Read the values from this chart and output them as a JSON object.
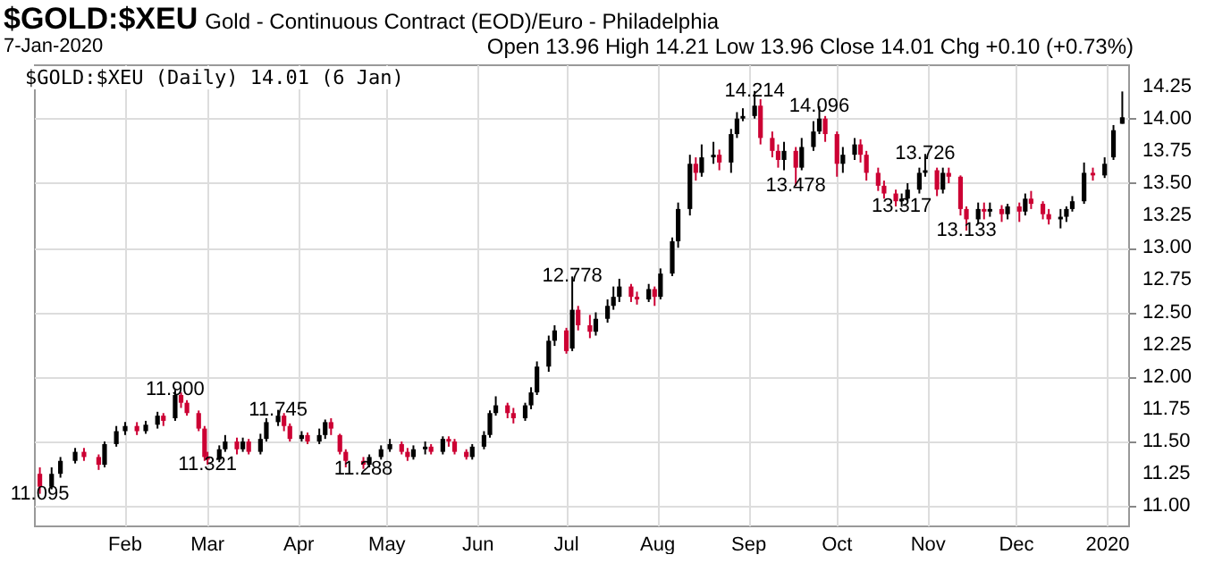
{
  "chart_data": {
    "type": "candlestick",
    "title": "$GOLD:$XEU",
    "subtitle": "Gold - Continuous Contract (EOD)/Euro - Philadelphia",
    "annotations": [
      "7-Jan-2020",
      "Open 13.96  High 14.21  Low 13.96  Close 14.01  Chg +0.10 (+0.73%)",
      "$GOLD:$XEU (Daily) 14.01 (6 Jan)",
      {
        "text": "11.095",
        "x": "2019-01-03",
        "y": 11.095
      },
      {
        "text": "11.900",
        "x": "2019-02-18",
        "y": 11.9
      },
      {
        "text": "11.321",
        "x": "2019-03-01",
        "y": 11.321
      },
      {
        "text": "11.745",
        "x": "2019-03-25",
        "y": 11.745
      },
      {
        "text": "11.288",
        "x": "2019-04-23",
        "y": 11.288
      },
      {
        "text": "12.778",
        "x": "2019-07-03",
        "y": 12.778
      },
      {
        "text": "14.214",
        "x": "2019-09-03",
        "y": 14.214
      },
      {
        "text": "13.478",
        "x": "2019-09-17",
        "y": 13.478
      },
      {
        "text": "14.096",
        "x": "2019-09-25",
        "y": 14.096
      },
      {
        "text": "13.317",
        "x": "2019-10-23",
        "y": 13.317
      },
      {
        "text": "13.726",
        "x": "2019-10-31",
        "y": 13.726
      },
      {
        "text": "13.133",
        "x": "2019-11-14",
        "y": 13.133
      }
    ],
    "xlim": [
      "2019-01-01",
      "2020-01-08"
    ],
    "xticks": [
      {
        "value": "2019-02-01",
        "label": "Feb"
      },
      {
        "value": "2019-03-01",
        "label": "Mar"
      },
      {
        "value": "2019-04-01",
        "label": "Apr"
      },
      {
        "value": "2019-05-01",
        "label": "May"
      },
      {
        "value": "2019-06-01",
        "label": "Jun"
      },
      {
        "value": "2019-07-01",
        "label": "Jul"
      },
      {
        "value": "2019-08-01",
        "label": "Aug"
      },
      {
        "value": "2019-09-01",
        "label": "Sep"
      },
      {
        "value": "2019-10-01",
        "label": "Oct"
      },
      {
        "value": "2019-11-01",
        "label": "Nov"
      },
      {
        "value": "2019-12-01",
        "label": "Dec"
      },
      {
        "value": "2020-01-01",
        "label": "2020"
      }
    ],
    "ylim": [
      10.85,
      14.42
    ],
    "yticks": [
      {
        "value": 11,
        "label": "11.00"
      },
      {
        "value": 11.25,
        "label": "11.25"
      },
      {
        "value": 11.5,
        "label": "11.50"
      },
      {
        "value": 11.75,
        "label": "11.75"
      },
      {
        "value": 12,
        "label": "12.00"
      },
      {
        "value": 12.25,
        "label": "12.25"
      },
      {
        "value": 12.5,
        "label": "12.50"
      },
      {
        "value": 12.75,
        "label": "12.75"
      },
      {
        "value": 13,
        "label": "13.00"
      },
      {
        "value": 13.25,
        "label": "13.25"
      },
      {
        "value": 13.5,
        "label": "13.50"
      },
      {
        "value": 13.75,
        "label": "13.75"
      },
      {
        "value": 14,
        "label": "14.00"
      },
      {
        "value": 14.25,
        "label": "14.25"
      }
    ],
    "grid": true,
    "series": [
      {
        "color": "#000000",
        "x": [
          "2019-01-07",
          "2019-01-10",
          "2019-01-15",
          "2019-01-25",
          "2019-01-29",
          "2019-02-01",
          "2019-02-08",
          "2019-02-12",
          "2019-02-18",
          "2019-03-05",
          "2019-03-07",
          "2019-03-13",
          "2019-03-19",
          "2019-03-21",
          "2019-03-25",
          "2019-04-02",
          "2019-04-08",
          "2019-04-10",
          "2019-04-25",
          "2019-04-29",
          "2019-05-02",
          "2019-05-10",
          "2019-05-14",
          "2019-05-20",
          "2019-05-30",
          "2019-06-03",
          "2019-06-05",
          "2019-06-07",
          "2019-06-17",
          "2019-06-19",
          "2019-06-21",
          "2019-06-25",
          "2019-06-27",
          "2019-07-03",
          "2019-07-11",
          "2019-07-15",
          "2019-07-17",
          "2019-07-19",
          "2019-07-29",
          "2019-08-02",
          "2019-08-06",
          "2019-08-08",
          "2019-08-12",
          "2019-08-16",
          "2019-08-20",
          "2019-08-26",
          "2019-08-28",
          "2019-08-30",
          "2019-09-03",
          "2019-09-13",
          "2019-09-19",
          "2019-09-23",
          "2019-09-25",
          "2019-10-03",
          "2019-10-07",
          "2019-10-23",
          "2019-10-25",
          "2019-10-29",
          "2019-10-31",
          "2019-11-06",
          "2019-11-18",
          "2019-11-22",
          "2019-11-28",
          "2019-12-04",
          "2019-12-16",
          "2019-12-18",
          "2019-12-20",
          "2019-12-24",
          "2019-12-31",
          "2020-01-03",
          "2020-01-06"
        ],
        "ohlc": [
          [
            11.15,
            11.3,
            11.13,
            11.25
          ],
          [
            11.25,
            11.38,
            11.22,
            11.35
          ],
          [
            11.35,
            11.45,
            11.33,
            11.42
          ],
          [
            11.32,
            11.5,
            11.3,
            11.48
          ],
          [
            11.48,
            11.62,
            11.46,
            11.58
          ],
          [
            11.58,
            11.65,
            11.55,
            11.62
          ],
          [
            11.58,
            11.66,
            11.56,
            11.63
          ],
          [
            11.63,
            11.73,
            11.6,
            11.7
          ],
          [
            11.68,
            11.9,
            11.66,
            11.86
          ],
          [
            11.36,
            11.47,
            11.34,
            11.44
          ],
          [
            11.44,
            11.55,
            11.42,
            11.5
          ],
          [
            11.44,
            11.53,
            11.42,
            11.5
          ],
          [
            11.42,
            11.56,
            11.4,
            11.52
          ],
          [
            11.52,
            11.68,
            11.5,
            11.65
          ],
          [
            11.65,
            11.745,
            11.62,
            11.7
          ],
          [
            11.52,
            11.58,
            11.5,
            11.55
          ],
          [
            11.5,
            11.6,
            11.48,
            11.55
          ],
          [
            11.55,
            11.67,
            11.52,
            11.65
          ],
          [
            11.32,
            11.4,
            11.3,
            11.38
          ],
          [
            11.38,
            11.47,
            11.36,
            11.44
          ],
          [
            11.44,
            11.52,
            11.42,
            11.48
          ],
          [
            11.38,
            11.47,
            11.36,
            11.44
          ],
          [
            11.44,
            11.5,
            11.4,
            11.46
          ],
          [
            11.42,
            11.54,
            11.4,
            11.52
          ],
          [
            11.38,
            11.48,
            11.36,
            11.46
          ],
          [
            11.46,
            11.58,
            11.44,
            11.55
          ],
          [
            11.55,
            11.74,
            11.53,
            11.72
          ],
          [
            11.72,
            11.85,
            11.7,
            11.78
          ],
          [
            11.68,
            11.8,
            11.66,
            11.78
          ],
          [
            11.78,
            11.92,
            11.75,
            11.88
          ],
          [
            11.88,
            12.12,
            11.86,
            12.08
          ],
          [
            12.08,
            12.32,
            12.04,
            12.28
          ],
          [
            12.28,
            12.4,
            12.24,
            12.36
          ],
          [
            12.22,
            12.778,
            12.2,
            12.52
          ],
          [
            12.35,
            12.5,
            12.32,
            12.45
          ],
          [
            12.45,
            12.6,
            12.42,
            12.55
          ],
          [
            12.55,
            12.7,
            12.52,
            12.62
          ],
          [
            12.62,
            12.76,
            12.58,
            12.7
          ],
          [
            12.6,
            12.72,
            12.58,
            12.68
          ],
          [
            12.62,
            12.84,
            12.6,
            12.8
          ],
          [
            12.8,
            13.08,
            12.78,
            13.05
          ],
          [
            13.05,
            13.35,
            13.0,
            13.3
          ],
          [
            13.3,
            13.72,
            13.25,
            13.65
          ],
          [
            13.58,
            13.8,
            13.55,
            13.7
          ],
          [
            13.7,
            13.82,
            13.65,
            13.72
          ],
          [
            13.66,
            13.92,
            13.58,
            13.88
          ],
          [
            13.88,
            14.05,
            13.85,
            14.0
          ],
          [
            14.0,
            14.08,
            13.98,
            14.02
          ],
          [
            14.02,
            14.214,
            14.0,
            14.1
          ],
          [
            13.68,
            13.82,
            13.6,
            13.75
          ],
          [
            13.62,
            13.85,
            13.6,
            13.78
          ],
          [
            13.78,
            13.98,
            13.75,
            13.9
          ],
          [
            13.9,
            14.096,
            13.88,
            14.0
          ],
          [
            13.65,
            13.78,
            13.58,
            13.72
          ],
          [
            13.72,
            13.85,
            13.68,
            13.8
          ],
          [
            13.36,
            13.42,
            13.317,
            13.38
          ],
          [
            13.38,
            13.5,
            13.36,
            13.45
          ],
          [
            13.45,
            13.62,
            13.42,
            13.58
          ],
          [
            13.58,
            13.726,
            13.55,
            13.6
          ],
          [
            13.45,
            13.62,
            13.42,
            13.58
          ],
          [
            13.22,
            13.35,
            13.18,
            13.3
          ],
          [
            13.28,
            13.35,
            13.24,
            13.3
          ],
          [
            13.26,
            13.34,
            13.22,
            13.32
          ],
          [
            13.28,
            13.42,
            13.25,
            13.38
          ],
          [
            13.22,
            13.3,
            13.15,
            13.24
          ],
          [
            13.24,
            13.32,
            13.2,
            13.3
          ],
          [
            13.3,
            13.4,
            13.28,
            13.36
          ],
          [
            13.36,
            13.66,
            13.34,
            13.58
          ],
          [
            13.56,
            13.7,
            13.54,
            13.65
          ],
          [
            13.7,
            13.95,
            13.68,
            13.91
          ],
          [
            13.96,
            14.21,
            13.96,
            14.01
          ]
        ]
      },
      {
        "color": "#cc0033",
        "x": [
          "2019-01-03",
          "2019-01-18",
          "2019-01-23",
          "2019-02-05",
          "2019-02-14",
          "2019-02-20",
          "2019-02-22",
          "2019-02-26",
          "2019-02-28",
          "2019-03-01",
          "2019-03-11",
          "2019-03-15",
          "2019-03-27",
          "2019-03-29",
          "2019-04-04",
          "2019-04-12",
          "2019-04-15",
          "2019-04-17",
          "2019-04-23",
          "2019-05-06",
          "2019-05-08",
          "2019-05-16",
          "2019-05-22",
          "2019-05-24",
          "2019-05-28",
          "2019-06-11",
          "2019-06-13",
          "2019-07-01",
          "2019-07-05",
          "2019-07-09",
          "2019-07-23",
          "2019-07-25",
          "2019-07-31",
          "2019-08-14",
          "2019-08-22",
          "2019-09-05",
          "2019-09-09",
          "2019-09-11",
          "2019-09-17",
          "2019-09-27",
          "2019-10-01",
          "2019-10-09",
          "2019-10-11",
          "2019-10-15",
          "2019-10-17",
          "2019-10-21",
          "2019-11-04",
          "2019-11-08",
          "2019-11-12",
          "2019-11-14",
          "2019-11-20",
          "2019-11-26",
          "2019-12-02",
          "2019-12-06",
          "2019-12-10",
          "2019-12-12",
          "2019-12-27"
        ],
        "ohlc": [
          [
            11.25,
            11.3,
            11.095,
            11.15
          ],
          [
            11.42,
            11.45,
            11.35,
            11.38
          ],
          [
            11.38,
            11.4,
            11.28,
            11.32
          ],
          [
            11.62,
            11.65,
            11.55,
            11.58
          ],
          [
            11.7,
            11.72,
            11.62,
            11.66
          ],
          [
            11.86,
            11.88,
            11.76,
            11.8
          ],
          [
            11.8,
            11.82,
            11.7,
            11.72
          ],
          [
            11.72,
            11.74,
            11.58,
            11.6
          ],
          [
            11.6,
            11.62,
            11.35,
            11.38
          ],
          [
            11.38,
            11.42,
            11.321,
            11.36
          ],
          [
            11.5,
            11.53,
            11.4,
            11.44
          ],
          [
            11.5,
            11.52,
            11.4,
            11.42
          ],
          [
            11.7,
            11.72,
            11.58,
            11.62
          ],
          [
            11.62,
            11.64,
            11.5,
            11.52
          ],
          [
            11.55,
            11.57,
            11.48,
            11.5
          ],
          [
            11.65,
            11.68,
            11.55,
            11.6
          ],
          [
            11.55,
            11.56,
            11.4,
            11.42
          ],
          [
            11.42,
            11.44,
            11.3,
            11.35
          ],
          [
            11.35,
            11.38,
            11.288,
            11.32
          ],
          [
            11.48,
            11.5,
            11.4,
            11.42
          ],
          [
            11.42,
            11.45,
            11.35,
            11.38
          ],
          [
            11.46,
            11.48,
            11.4,
            11.42
          ],
          [
            11.52,
            11.54,
            11.46,
            11.5
          ],
          [
            11.5,
            11.52,
            11.4,
            11.42
          ],
          [
            11.42,
            11.44,
            11.36,
            11.38
          ],
          [
            11.78,
            11.8,
            11.68,
            11.72
          ],
          [
            11.72,
            11.76,
            11.64,
            11.68
          ],
          [
            12.36,
            12.38,
            12.18,
            12.2
          ],
          [
            12.52,
            12.55,
            12.36,
            12.4
          ],
          [
            12.4,
            12.48,
            12.3,
            12.35
          ],
          [
            12.7,
            12.72,
            12.58,
            12.62
          ],
          [
            12.62,
            12.66,
            12.56,
            12.6
          ],
          [
            12.68,
            12.7,
            12.55,
            12.62
          ],
          [
            13.65,
            13.7,
            13.52,
            13.58
          ],
          [
            13.72,
            13.76,
            13.6,
            13.66
          ],
          [
            14.1,
            14.15,
            13.8,
            13.85
          ],
          [
            13.85,
            13.9,
            13.7,
            13.75
          ],
          [
            13.75,
            13.8,
            13.62,
            13.68
          ],
          [
            13.75,
            13.78,
            13.478,
            13.62
          ],
          [
            14.0,
            14.02,
            13.82,
            13.88
          ],
          [
            13.88,
            13.9,
            13.55,
            13.65
          ],
          [
            13.8,
            13.84,
            13.66,
            13.72
          ],
          [
            13.72,
            13.75,
            13.52,
            13.58
          ],
          [
            13.58,
            13.62,
            13.44,
            13.48
          ],
          [
            13.48,
            13.52,
            13.38,
            13.42
          ],
          [
            13.42,
            13.45,
            13.32,
            13.36
          ],
          [
            13.6,
            13.62,
            13.4,
            13.45
          ],
          [
            13.58,
            13.62,
            13.5,
            13.55
          ],
          [
            13.55,
            13.56,
            13.25,
            13.3
          ],
          [
            13.3,
            13.32,
            13.133,
            13.22
          ],
          [
            13.3,
            13.35,
            13.22,
            13.28
          ],
          [
            13.3,
            13.33,
            13.2,
            13.26
          ],
          [
            13.32,
            13.35,
            13.2,
            13.28
          ],
          [
            13.38,
            13.44,
            13.3,
            13.34
          ],
          [
            13.34,
            13.36,
            13.22,
            13.26
          ],
          [
            13.26,
            13.3,
            13.18,
            13.22
          ],
          [
            13.58,
            13.62,
            13.52,
            13.56
          ]
        ]
      }
    ]
  }
}
